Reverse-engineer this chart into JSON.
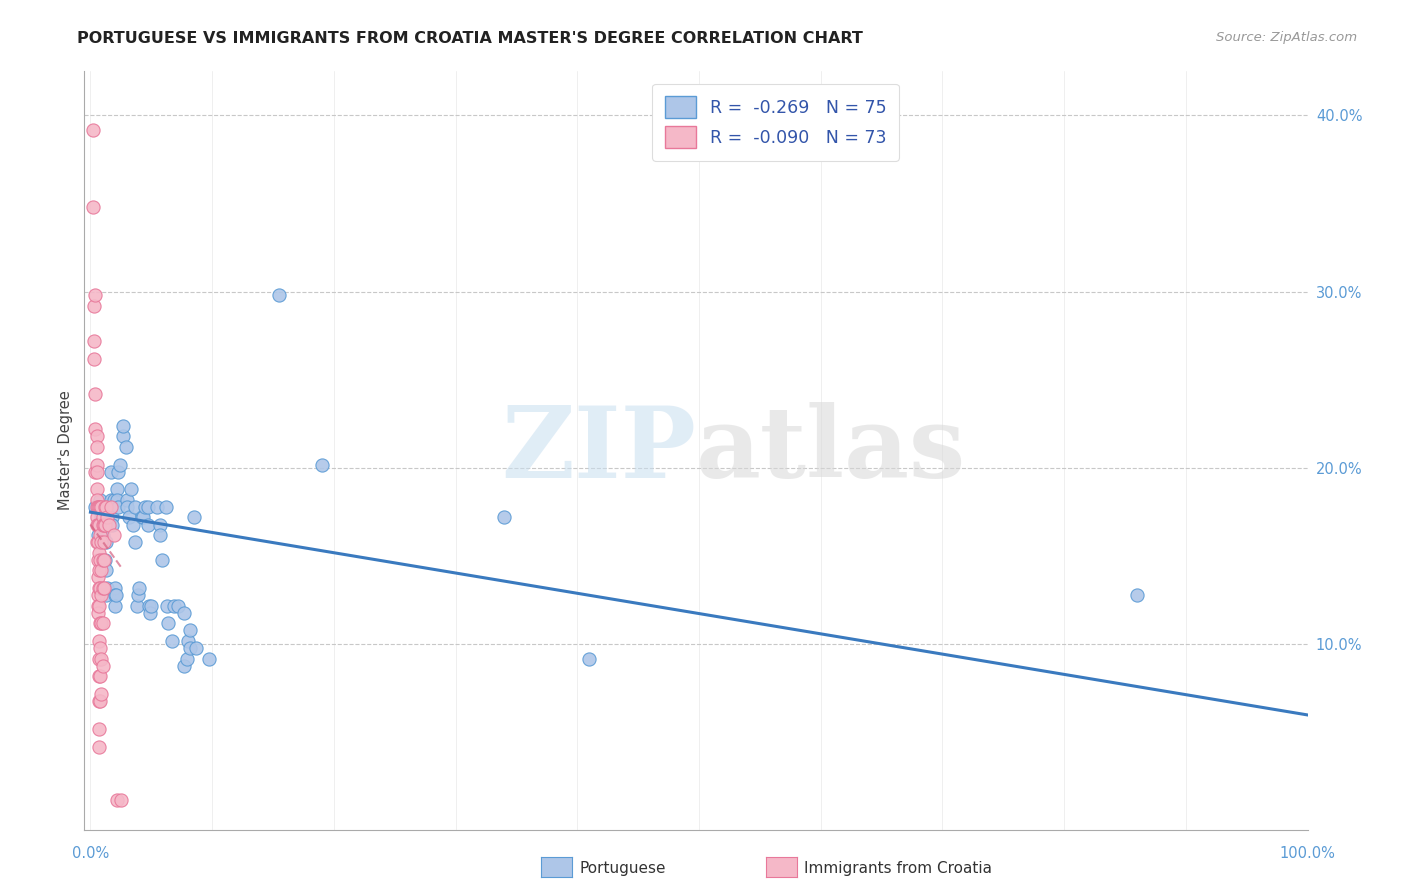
{
  "title": "PORTUGUESE VS IMMIGRANTS FROM CROATIA MASTER'S DEGREE CORRELATION CHART",
  "source": "Source: ZipAtlas.com",
  "ylabel": "Master's Degree",
  "watermark_zip": "ZIP",
  "watermark_atlas": "atlas",
  "legend_r1": "-0.269",
  "legend_n1": "75",
  "legend_r2": "-0.090",
  "legend_n2": "73",
  "blue_fill": "#aec6e8",
  "pink_fill": "#f5b8c8",
  "blue_edge": "#5b9bd5",
  "pink_edge": "#e8789a",
  "blue_trend_color": "#3a7abf",
  "pink_trend_color": "#d46080",
  "grid_color": "#c8c8c8",
  "right_tick_color": "#5b9bd5",
  "blue_scatter": [
    [
      0.004,
      0.178
    ],
    [
      0.006,
      0.162
    ],
    [
      0.007,
      0.178
    ],
    [
      0.008,
      0.182
    ],
    [
      0.009,
      0.172
    ],
    [
      0.009,
      0.158
    ],
    [
      0.01,
      0.178
    ],
    [
      0.01,
      0.162
    ],
    [
      0.011,
      0.168
    ],
    [
      0.012,
      0.148
    ],
    [
      0.013,
      0.142
    ],
    [
      0.013,
      0.158
    ],
    [
      0.013,
      0.128
    ],
    [
      0.014,
      0.132
    ],
    [
      0.015,
      0.178
    ],
    [
      0.016,
      0.178
    ],
    [
      0.017,
      0.182
    ],
    [
      0.017,
      0.198
    ],
    [
      0.018,
      0.172
    ],
    [
      0.018,
      0.168
    ],
    [
      0.019,
      0.182
    ],
    [
      0.02,
      0.132
    ],
    [
      0.02,
      0.128
    ],
    [
      0.02,
      0.122
    ],
    [
      0.021,
      0.128
    ],
    [
      0.022,
      0.188
    ],
    [
      0.022,
      0.182
    ],
    [
      0.023,
      0.198
    ],
    [
      0.023,
      0.178
    ],
    [
      0.024,
      0.202
    ],
    [
      0.027,
      0.218
    ],
    [
      0.027,
      0.224
    ],
    [
      0.029,
      0.212
    ],
    [
      0.03,
      0.182
    ],
    [
      0.03,
      0.178
    ],
    [
      0.032,
      0.172
    ],
    [
      0.033,
      0.188
    ],
    [
      0.035,
      0.168
    ],
    [
      0.037,
      0.178
    ],
    [
      0.037,
      0.158
    ],
    [
      0.038,
      0.122
    ],
    [
      0.039,
      0.128
    ],
    [
      0.04,
      0.132
    ],
    [
      0.042,
      0.172
    ],
    [
      0.043,
      0.172
    ],
    [
      0.045,
      0.178
    ],
    [
      0.047,
      0.178
    ],
    [
      0.047,
      0.168
    ],
    [
      0.048,
      0.122
    ],
    [
      0.049,
      0.118
    ],
    [
      0.05,
      0.122
    ],
    [
      0.055,
      0.178
    ],
    [
      0.057,
      0.168
    ],
    [
      0.057,
      0.162
    ],
    [
      0.059,
      0.148
    ],
    [
      0.062,
      0.178
    ],
    [
      0.063,
      0.122
    ],
    [
      0.064,
      0.112
    ],
    [
      0.067,
      0.102
    ],
    [
      0.069,
      0.122
    ],
    [
      0.072,
      0.122
    ],
    [
      0.077,
      0.118
    ],
    [
      0.077,
      0.088
    ],
    [
      0.079,
      0.092
    ],
    [
      0.08,
      0.102
    ],
    [
      0.082,
      0.108
    ],
    [
      0.082,
      0.098
    ],
    [
      0.085,
      0.172
    ],
    [
      0.087,
      0.098
    ],
    [
      0.097,
      0.092
    ],
    [
      0.155,
      0.298
    ],
    [
      0.19,
      0.202
    ],
    [
      0.34,
      0.172
    ],
    [
      0.41,
      0.092
    ],
    [
      0.86,
      0.128
    ]
  ],
  "pink_scatter": [
    [
      0.002,
      0.392
    ],
    [
      0.002,
      0.348
    ],
    [
      0.003,
      0.292
    ],
    [
      0.003,
      0.272
    ],
    [
      0.003,
      0.262
    ],
    [
      0.004,
      0.298
    ],
    [
      0.004,
      0.242
    ],
    [
      0.004,
      0.222
    ],
    [
      0.004,
      0.198
    ],
    [
      0.005,
      0.218
    ],
    [
      0.005,
      0.212
    ],
    [
      0.005,
      0.202
    ],
    [
      0.005,
      0.198
    ],
    [
      0.005,
      0.188
    ],
    [
      0.005,
      0.182
    ],
    [
      0.005,
      0.178
    ],
    [
      0.005,
      0.172
    ],
    [
      0.005,
      0.168
    ],
    [
      0.005,
      0.158
    ],
    [
      0.006,
      0.178
    ],
    [
      0.006,
      0.168
    ],
    [
      0.006,
      0.158
    ],
    [
      0.006,
      0.148
    ],
    [
      0.006,
      0.138
    ],
    [
      0.006,
      0.128
    ],
    [
      0.006,
      0.122
    ],
    [
      0.006,
      0.118
    ],
    [
      0.007,
      0.178
    ],
    [
      0.007,
      0.168
    ],
    [
      0.007,
      0.152
    ],
    [
      0.007,
      0.142
    ],
    [
      0.007,
      0.132
    ],
    [
      0.007,
      0.122
    ],
    [
      0.007,
      0.102
    ],
    [
      0.007,
      0.092
    ],
    [
      0.007,
      0.082
    ],
    [
      0.007,
      0.068
    ],
    [
      0.007,
      0.052
    ],
    [
      0.007,
      0.042
    ],
    [
      0.008,
      0.178
    ],
    [
      0.008,
      0.162
    ],
    [
      0.008,
      0.148
    ],
    [
      0.008,
      0.132
    ],
    [
      0.008,
      0.112
    ],
    [
      0.008,
      0.098
    ],
    [
      0.008,
      0.082
    ],
    [
      0.008,
      0.068
    ],
    [
      0.009,
      0.178
    ],
    [
      0.009,
      0.158
    ],
    [
      0.009,
      0.142
    ],
    [
      0.009,
      0.128
    ],
    [
      0.009,
      0.112
    ],
    [
      0.009,
      0.092
    ],
    [
      0.009,
      0.072
    ],
    [
      0.01,
      0.172
    ],
    [
      0.01,
      0.168
    ],
    [
      0.01,
      0.148
    ],
    [
      0.01,
      0.132
    ],
    [
      0.01,
      0.112
    ],
    [
      0.01,
      0.088
    ],
    [
      0.011,
      0.168
    ],
    [
      0.011,
      0.158
    ],
    [
      0.011,
      0.148
    ],
    [
      0.011,
      0.132
    ],
    [
      0.012,
      0.178
    ],
    [
      0.012,
      0.168
    ],
    [
      0.013,
      0.178
    ],
    [
      0.014,
      0.172
    ],
    [
      0.015,
      0.168
    ],
    [
      0.017,
      0.178
    ],
    [
      0.019,
      0.162
    ],
    [
      0.022,
      0.012
    ],
    [
      0.025,
      0.012
    ]
  ],
  "blue_trend_x": [
    0.0,
    1.0
  ],
  "blue_trend_y": [
    0.175,
    0.06
  ],
  "pink_trend_x": [
    0.0,
    0.026
  ],
  "pink_trend_y": [
    0.168,
    0.143
  ],
  "xlim": [
    -0.005,
    1.0
  ],
  "ylim": [
    -0.005,
    0.425
  ],
  "yticks_right": [
    0.1,
    0.2,
    0.3,
    0.4
  ],
  "ytick_right_labels": [
    "10.0%",
    "20.0%",
    "30.0%",
    "40.0%"
  ],
  "xlabel_left_text": "0.0%",
  "xlabel_right_text": "100.0%",
  "legend_label1": "Portuguese",
  "legend_label2": "Immigrants from Croatia",
  "title_fontsize": 11.5,
  "tick_fontsize": 10.5,
  "source_fontsize": 9.5
}
